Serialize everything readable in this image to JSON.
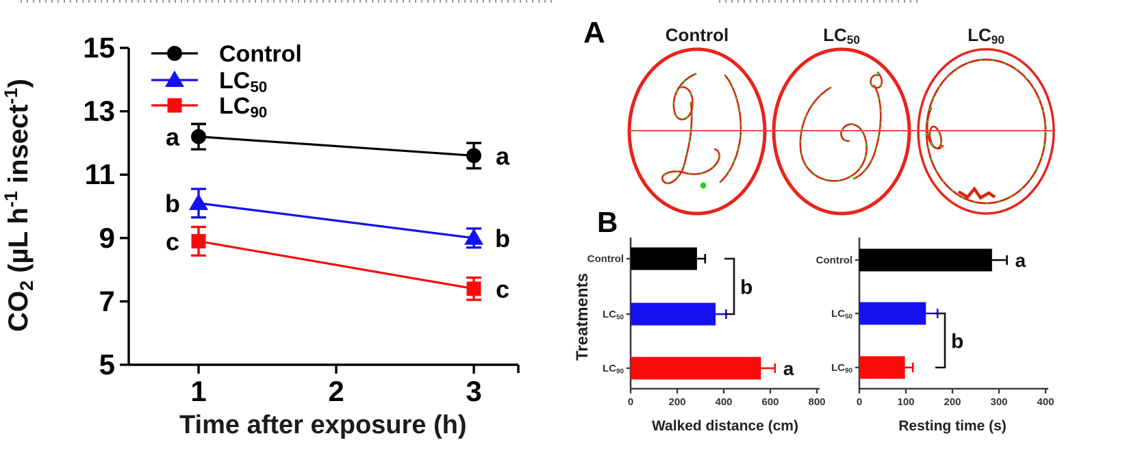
{
  "panel_a": {
    "label": "A",
    "arenas": [
      {
        "title": "Control",
        "track_description": "meandering track with loop through arena center"
      },
      {
        "title": "LC_50",
        "track_description": "large irregular central loop with squiggle near top-right wall"
      },
      {
        "title": "LC_90",
        "track_description": "track circling along the arena wall (thigmotaxis ring)"
      }
    ],
    "outline_color": "#e8241d",
    "midline_color": "#f5483c",
    "track_color": "#d6270d",
    "track_dot_color": "#2ecc1e"
  },
  "panel_b": {
    "label": "B"
  },
  "chart_data": [
    {
      "id": "co2-respiration",
      "type": "line",
      "title": "",
      "xlabel": "Time after exposure (h)",
      "ylabel": "CO2 (µL h-1 insect-1)",
      "ylabel_segments": [
        {
          "t": "CO"
        },
        {
          "t": "2",
          "style": "sub"
        },
        {
          "t": " (µL h"
        },
        {
          "t": "-1",
          "style": "sup"
        },
        {
          "t": " insect"
        },
        {
          "t": "-1",
          "style": "sup"
        },
        {
          "t": ")"
        }
      ],
      "x": [
        1,
        3
      ],
      "xticks": [
        1,
        2,
        3
      ],
      "xlim": [
        0.5,
        3.35
      ],
      "yticks": [
        5,
        7,
        9,
        11,
        13,
        15
      ],
      "ylim": [
        5,
        15
      ],
      "grid": false,
      "legend_position": "top-left-inside",
      "series": [
        {
          "name": "Control",
          "color": "#000000",
          "marker": "circle",
          "values": [
            12.2,
            11.6
          ],
          "errors": [
            0.4,
            0.4
          ],
          "point_labels": [
            "a",
            "a"
          ]
        },
        {
          "name": "LC_50",
          "color": "#1410f0",
          "marker": "triangle",
          "values": [
            10.1,
            9.0
          ],
          "errors": [
            0.45,
            0.3
          ],
          "point_labels": [
            "b",
            "b"
          ]
        },
        {
          "name": "LC_90",
          "color": "#fa0a0a",
          "marker": "square",
          "values": [
            8.9,
            7.4
          ],
          "errors": [
            0.45,
            0.35
          ],
          "point_labels": [
            "c",
            "c"
          ]
        }
      ]
    },
    {
      "id": "walked-distance",
      "type": "bar",
      "orientation": "horizontal",
      "xlabel": "Walked distance (cm)",
      "ylabel": "Treatments",
      "categories": [
        "Control",
        "LC_50",
        "LC_90"
      ],
      "values": [
        285,
        365,
        560
      ],
      "errors": [
        35,
        45,
        60
      ],
      "colors": [
        "#000000",
        "#1410f0",
        "#fa0a0a"
      ],
      "xticks": [
        0,
        200,
        400,
        600,
        800
      ],
      "xlim": [
        0,
        800
      ],
      "sig_bracket": {
        "from": "Control",
        "to": "LC_50",
        "label": "b"
      },
      "end_label": {
        "category": "LC_90",
        "label": "a"
      }
    },
    {
      "id": "resting-time",
      "type": "bar",
      "orientation": "horizontal",
      "xlabel": "Resting time (s)",
      "ylabel": "",
      "categories": [
        "Control",
        "LC_50",
        "LC_90"
      ],
      "values": [
        285,
        143,
        98
      ],
      "errors": [
        32,
        25,
        17
      ],
      "colors": [
        "#000000",
        "#1410f0",
        "#fa0a0a"
      ],
      "xticks": [
        0,
        100,
        200,
        300,
        400
      ],
      "xlim": [
        0,
        400
      ],
      "sig_bracket": {
        "from": "LC_50",
        "to": "LC_90",
        "label": "b"
      },
      "end_label": {
        "category": "Control",
        "label": "a"
      }
    }
  ]
}
